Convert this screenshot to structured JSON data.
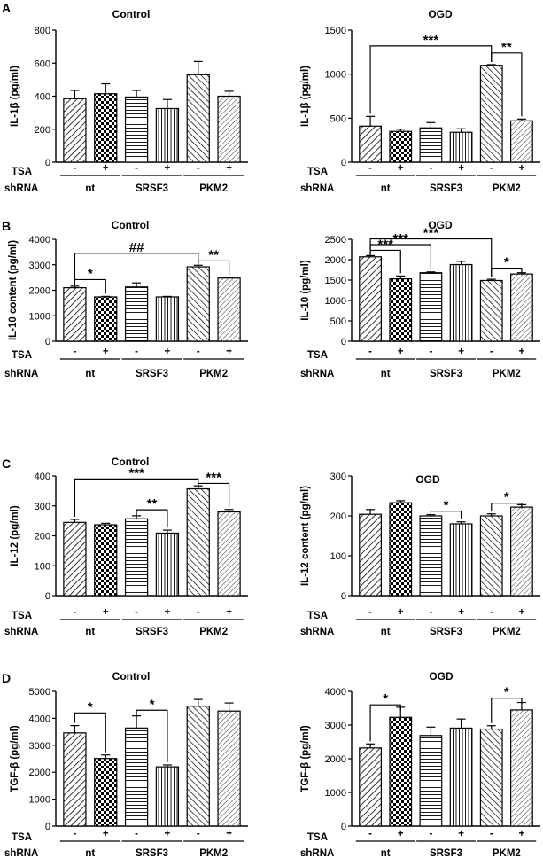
{
  "row_labels": {
    "treatment": "TSA",
    "group": "shRNA"
  },
  "treatment_signs": [
    "-",
    "+",
    "-",
    "+",
    "-",
    "+"
  ],
  "groups": [
    "nt",
    "SRSF3",
    "PKM2"
  ],
  "chart_data": [
    {
      "panel": "A",
      "title": "Control",
      "type": "bar",
      "ylabel": "IL-1β (pg/ml)",
      "ylim": [
        0,
        800
      ],
      "yticks": [
        "0",
        "200",
        "400",
        "600",
        "800"
      ],
      "ytick_values": [
        0,
        200,
        400,
        600,
        800
      ],
      "values": [
        385,
        415,
        395,
        325,
        530,
        400
      ],
      "errors": [
        50,
        60,
        40,
        55,
        80,
        30
      ],
      "annotations": []
    },
    {
      "panel": "",
      "title": "OGD",
      "type": "bar",
      "ylabel": "IL-1β (pg/ml)",
      "ylim": [
        0,
        1500
      ],
      "yticks": [
        "0",
        "500",
        "1000",
        "1500"
      ],
      "ytick_values": [
        0,
        500,
        1000,
        1500
      ],
      "values": [
        410,
        350,
        390,
        340,
        1100,
        470
      ],
      "errors": [
        110,
        25,
        60,
        40,
        8,
        20
      ],
      "annotations": [
        {
          "from": 0,
          "to": 4,
          "label": "***",
          "level": 1320
        },
        {
          "from": 4,
          "to": 5,
          "label": "**",
          "level": 1240
        }
      ]
    },
    {
      "panel": "B",
      "title": "Control",
      "type": "bar",
      "ylabel": "IL-10 content (pg/ml)",
      "ylim": [
        0,
        4000
      ],
      "yticks": [
        "0",
        "1000",
        "2000",
        "3000",
        "4000"
      ],
      "ytick_values": [
        0,
        1000,
        2000,
        3000,
        4000
      ],
      "values": [
        2100,
        1740,
        2130,
        1740,
        2920,
        2480
      ],
      "errors": [
        60,
        20,
        160,
        20,
        60,
        20
      ],
      "annotations": [
        {
          "from": 0,
          "to": 4,
          "label": "##",
          "level": 3450
        },
        {
          "from": 0,
          "to": 1,
          "label": "*",
          "level": 2420
        },
        {
          "from": 4,
          "to": 5,
          "label": "**",
          "level": 3150
        }
      ]
    },
    {
      "panel": "",
      "title": "OGD",
      "type": "bar",
      "ylabel": "IL-10 (pg/ml)",
      "ylim": [
        0,
        2500
      ],
      "yticks": [
        "0",
        "500",
        "1000",
        "1500",
        "2000",
        "2500"
      ],
      "ytick_values": [
        0,
        500,
        1000,
        1500,
        2000,
        2500
      ],
      "values": [
        2070,
        1530,
        1680,
        1880,
        1490,
        1650
      ],
      "errors": [
        30,
        70,
        20,
        80,
        30,
        30
      ],
      "annotations": [
        {
          "from": 0,
          "to": 1,
          "label": "***",
          "level": 2230
        },
        {
          "from": 0,
          "to": 2,
          "label": "***",
          "level": 2370
        },
        {
          "from": 0,
          "to": 4,
          "label": "***",
          "level": 2510
        },
        {
          "from": 4,
          "to": 5,
          "label": "*",
          "level": 1790
        }
      ]
    },
    {
      "panel": "C",
      "title": "Control",
      "type": "bar",
      "ylabel": "IL-12 (pg/ml)",
      "ylim": [
        0,
        400
      ],
      "yticks": [
        "0",
        "100",
        "200",
        "300",
        "400"
      ],
      "ytick_values": [
        0,
        100,
        200,
        300,
        400
      ],
      "values": [
        245,
        237,
        257,
        209,
        357,
        280
      ],
      "errors": [
        10,
        5,
        10,
        10,
        10,
        8
      ],
      "annotations": [
        {
          "from": 0,
          "to": 4,
          "label": "***",
          "level": 390
        },
        {
          "from": 2,
          "to": 3,
          "label": "**",
          "level": 287
        },
        {
          "from": 4,
          "to": 5,
          "label": "***",
          "level": 375
        }
      ]
    },
    {
      "panel": "",
      "title": "OGD",
      "type": "bar",
      "ylabel": "IL-12 content (pg/ml)",
      "ylim": [
        0,
        300
      ],
      "yticks": [
        "0",
        "100",
        "200",
        "300"
      ],
      "ytick_values": [
        0,
        100,
        200,
        300
      ],
      "values": [
        204,
        233,
        200,
        180,
        200,
        222
      ],
      "errors": [
        12,
        5,
        3,
        5,
        5,
        6
      ],
      "annotations": [
        {
          "from": 2,
          "to": 3,
          "label": "*",
          "level": 212
        },
        {
          "from": 4,
          "to": 5,
          "label": "*",
          "level": 232
        }
      ]
    },
    {
      "panel": "D",
      "title": "Control",
      "type": "bar",
      "ylabel": "TGF-β (pg/ml)",
      "ylim": [
        0,
        5000
      ],
      "yticks": [
        "0",
        "1000",
        "2000",
        "3000",
        "4000",
        "5000"
      ],
      "ytick_values": [
        0,
        1000,
        2000,
        3000,
        4000,
        5000
      ],
      "values": [
        3460,
        2510,
        3640,
        2200,
        4450,
        4270
      ],
      "errors": [
        270,
        130,
        450,
        70,
        250,
        300
      ],
      "annotations": [
        {
          "from": 0,
          "to": 1,
          "label": "*",
          "level": 4200
        },
        {
          "from": 2,
          "to": 3,
          "label": "*",
          "level": 4300
        }
      ]
    },
    {
      "panel": "",
      "title": "OGD",
      "type": "bar",
      "ylabel": "TGF-β (pg/ml)",
      "ylim": [
        0,
        4000
      ],
      "yticks": [
        "0",
        "1000",
        "2000",
        "3000",
        "4000"
      ],
      "ytick_values": [
        0,
        1000,
        2000,
        3000,
        4000
      ],
      "values": [
        2320,
        3230,
        2690,
        2910,
        2880,
        3450
      ],
      "errors": [
        120,
        300,
        250,
        270,
        100,
        220
      ],
      "annotations": [
        {
          "from": 0,
          "to": 1,
          "label": "*",
          "level": 3600
        },
        {
          "from": 4,
          "to": 5,
          "label": "*",
          "level": 3800
        }
      ]
    }
  ]
}
